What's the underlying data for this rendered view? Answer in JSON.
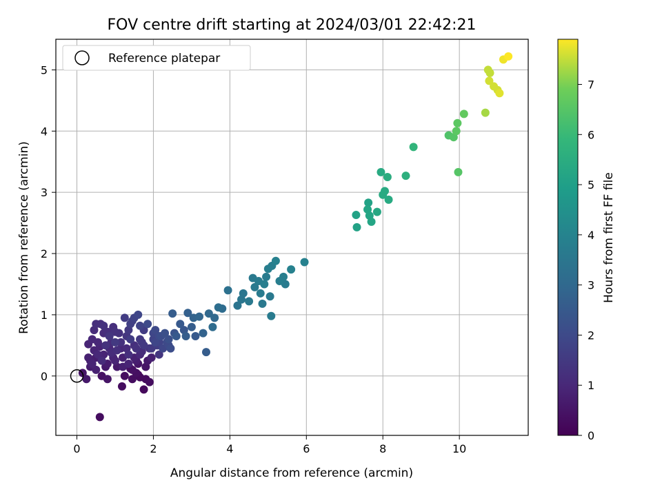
{
  "chart_data": {
    "type": "scatter",
    "title": "FOV centre drift starting at 2024/03/01 22:42:21",
    "xlabel": "Angular distance from reference (arcmin)",
    "ylabel": "Rotation from reference (arcmin)",
    "xlim": [
      -0.55,
      11.8
    ],
    "ylim": [
      -0.97,
      5.5
    ],
    "xticks": [
      0,
      2,
      4,
      6,
      8,
      10
    ],
    "yticks": [
      0,
      1,
      2,
      3,
      4,
      5
    ],
    "grid": true,
    "legend": {
      "placement": "top-left",
      "entries": [
        "Reference platepar"
      ]
    },
    "reference_point": {
      "x": 0,
      "y": 0
    },
    "colorbar": {
      "label": "Hours from first FF file",
      "colormap": "viridis",
      "range": [
        0,
        7.9
      ],
      "ticks": [
        0,
        1,
        2,
        3,
        4,
        5,
        6,
        7
      ]
    },
    "points": [
      [
        0.15,
        0.05,
        0.5
      ],
      [
        0.25,
        -0.05,
        0.6
      ],
      [
        0.3,
        0.52,
        0.9
      ],
      [
        0.35,
        0.25,
        0.8
      ],
      [
        0.35,
        0.15,
        0.7
      ],
      [
        0.4,
        0.6,
        1.0
      ],
      [
        0.45,
        0.75,
        1.1
      ],
      [
        0.45,
        0.42,
        0.9
      ],
      [
        0.5,
        0.3,
        0.7
      ],
      [
        0.5,
        0.1,
        0.8
      ],
      [
        0.55,
        0.55,
        1.0
      ],
      [
        0.6,
        -0.67,
        0.3
      ],
      [
        0.62,
        0.85,
        1.2
      ],
      [
        0.65,
        0.0,
        0.4
      ],
      [
        0.7,
        0.7,
        1.1
      ],
      [
        0.7,
        0.35,
        0.9
      ],
      [
        0.75,
        0.5,
        1.3
      ],
      [
        0.8,
        0.2,
        0.7
      ],
      [
        0.8,
        -0.05,
        0.5
      ],
      [
        0.85,
        0.65,
        1.4
      ],
      [
        0.9,
        0.38,
        1.1
      ],
      [
        0.95,
        0.8,
        1.2
      ],
      [
        1.0,
        0.25,
        0.9
      ],
      [
        1.0,
        0.55,
        1.5
      ],
      [
        1.05,
        0.15,
        0.6
      ],
      [
        1.1,
        0.7,
        1.3
      ],
      [
        1.15,
        0.45,
        1.0
      ],
      [
        1.18,
        -0.17,
        0.3
      ],
      [
        1.2,
        0.3,
        0.8
      ],
      [
        1.25,
        0.95,
        1.6
      ],
      [
        1.3,
        0.65,
        1.4
      ],
      [
        1.35,
        0.2,
        0.9
      ],
      [
        1.4,
        0.85,
        1.7
      ],
      [
        1.45,
        0.1,
        0.4
      ],
      [
        1.45,
        -0.05,
        0.3
      ],
      [
        1.5,
        0.5,
        1.2
      ],
      [
        1.5,
        0.95,
        1.8
      ],
      [
        1.55,
        0.25,
        0.7
      ],
      [
        1.6,
        0.02,
        0.2
      ],
      [
        1.6,
        1.0,
        1.9
      ],
      [
        1.65,
        0.6,
        1.5
      ],
      [
        1.7,
        0.4,
        1.1
      ],
      [
        1.75,
        -0.22,
        0.2
      ],
      [
        1.75,
        0.75,
        1.6
      ],
      [
        1.8,
        0.15,
        0.5
      ],
      [
        1.8,
        -0.05,
        0.25
      ],
      [
        1.85,
        0.85,
        2.0
      ],
      [
        1.9,
        0.45,
        1.3
      ],
      [
        1.9,
        -0.1,
        0.3
      ],
      [
        1.95,
        0.3,
        0.8
      ],
      [
        2.0,
        0.6,
        1.8
      ],
      [
        2.05,
        0.75,
        2.0
      ],
      [
        2.1,
        0.5,
        1.6
      ],
      [
        2.15,
        0.35,
        1.4
      ],
      [
        2.2,
        0.65,
        2.1
      ],
      [
        2.3,
        0.7,
        2.2
      ],
      [
        2.35,
        0.55,
        2.0
      ],
      [
        2.4,
        0.6,
        2.2
      ],
      [
        2.45,
        0.45,
        2.1
      ],
      [
        2.5,
        1.02,
        2.6
      ],
      [
        2.55,
        0.7,
        2.3
      ],
      [
        2.6,
        0.65,
        2.5
      ],
      [
        2.7,
        0.85,
        2.5
      ],
      [
        2.8,
        0.75,
        2.4
      ],
      [
        2.85,
        0.65,
        2.6
      ],
      [
        2.9,
        1.03,
        2.7
      ],
      [
        3.0,
        0.8,
        2.6
      ],
      [
        3.05,
        0.95,
        2.8
      ],
      [
        3.1,
        0.65,
        2.5
      ],
      [
        3.2,
        0.97,
        2.9
      ],
      [
        3.3,
        0.7,
        2.8
      ],
      [
        3.38,
        0.39,
        2.6
      ],
      [
        3.45,
        1.02,
        3.0
      ],
      [
        3.55,
        0.8,
        3.1
      ],
      [
        3.6,
        0.95,
        3.0
      ],
      [
        3.7,
        1.12,
        3.2
      ],
      [
        3.8,
        1.1,
        3.1
      ],
      [
        3.95,
        1.4,
        3.3
      ],
      [
        4.2,
        1.15,
        3.4
      ],
      [
        4.3,
        1.25,
        3.5
      ],
      [
        4.35,
        1.35,
        3.5
      ],
      [
        4.5,
        1.22,
        3.6
      ],
      [
        4.6,
        1.6,
        3.6
      ],
      [
        4.65,
        1.45,
        3.6
      ],
      [
        4.75,
        1.55,
        3.7
      ],
      [
        4.8,
        1.35,
        3.7
      ],
      [
        4.85,
        1.18,
        3.6
      ],
      [
        4.9,
        1.5,
        3.8
      ],
      [
        4.95,
        1.62,
        3.7
      ],
      [
        5.0,
        1.75,
        3.8
      ],
      [
        5.05,
        1.3,
        3.6
      ],
      [
        5.08,
        0.98,
        3.7
      ],
      [
        5.1,
        1.8,
        3.8
      ],
      [
        5.2,
        1.88,
        3.9
      ],
      [
        5.3,
        1.55,
        3.8
      ],
      [
        5.4,
        1.62,
        3.8
      ],
      [
        5.45,
        1.5,
        3.7
      ],
      [
        5.6,
        1.74,
        3.9
      ],
      [
        5.95,
        1.86,
        3.9
      ],
      [
        7.3,
        2.63,
        5.1
      ],
      [
        7.32,
        2.43,
        5.1
      ],
      [
        7.6,
        2.72,
        5.2
      ],
      [
        7.62,
        2.83,
        5.1
      ],
      [
        7.65,
        2.62,
        5.2
      ],
      [
        7.7,
        2.52,
        5.2
      ],
      [
        7.85,
        2.68,
        5.3
      ],
      [
        7.95,
        3.33,
        5.4
      ],
      [
        8.0,
        2.96,
        5.4
      ],
      [
        8.05,
        3.02,
        5.4
      ],
      [
        8.12,
        3.25,
        5.5
      ],
      [
        8.15,
        2.88,
        5.4
      ],
      [
        8.6,
        3.27,
        5.6
      ],
      [
        8.8,
        3.74,
        5.8
      ],
      [
        9.72,
        3.93,
        6.4
      ],
      [
        9.85,
        3.9,
        6.5
      ],
      [
        9.92,
        4.0,
        6.6
      ],
      [
        9.95,
        4.13,
        6.6
      ],
      [
        9.97,
        3.33,
        6.5
      ],
      [
        10.12,
        4.28,
        6.7
      ],
      [
        10.68,
        4.3,
        7.3
      ],
      [
        10.75,
        5.0,
        7.5
      ],
      [
        10.78,
        4.82,
        7.6
      ],
      [
        10.8,
        4.95,
        7.5
      ],
      [
        10.9,
        4.73,
        7.6
      ],
      [
        11.0,
        4.67,
        7.6
      ],
      [
        11.05,
        4.62,
        7.7
      ],
      [
        11.15,
        5.17,
        7.8
      ],
      [
        11.28,
        5.22,
        7.9
      ],
      [
        0.3,
        0.3,
        0.8
      ],
      [
        0.4,
        0.2,
        0.9
      ],
      [
        0.55,
        0.35,
        1.0
      ],
      [
        0.6,
        0.48,
        0.9
      ],
      [
        0.65,
        0.25,
        1.1
      ],
      [
        0.75,
        0.15,
        0.6
      ],
      [
        0.85,
        0.45,
        1.0
      ],
      [
        0.9,
        0.55,
        1.1
      ],
      [
        0.95,
        0.3,
        0.9
      ],
      [
        1.05,
        0.42,
        1.2
      ],
      [
        1.15,
        0.55,
        1.3
      ],
      [
        1.2,
        0.15,
        0.8
      ],
      [
        1.3,
        0.45,
        1.1
      ],
      [
        1.35,
        0.35,
        1.2
      ],
      [
        1.4,
        0.6,
        1.6
      ],
      [
        1.5,
        0.3,
        0.8
      ],
      [
        1.55,
        0.45,
        1.3
      ],
      [
        1.6,
        0.2,
        0.5
      ],
      [
        1.65,
        0.35,
        1.0
      ],
      [
        1.7,
        0.55,
        1.4
      ],
      [
        1.75,
        0.5,
        1.5
      ],
      [
        1.85,
        0.25,
        0.6
      ],
      [
        1.95,
        0.45,
        1.5
      ],
      [
        2.05,
        0.55,
        1.9
      ],
      [
        2.15,
        0.55,
        1.8
      ],
      [
        2.25,
        0.45,
        1.9
      ],
      [
        2.4,
        0.5,
        2.0
      ],
      [
        1.25,
        0.0,
        0.3
      ],
      [
        1.4,
        0.12,
        0.4
      ],
      [
        1.55,
        0.05,
        0.35
      ],
      [
        1.65,
        -0.02,
        0.25
      ],
      [
        0.5,
        0.85,
        1.2
      ],
      [
        0.7,
        0.82,
        1.3
      ],
      [
        0.8,
        0.72,
        1.2
      ],
      [
        1.0,
        0.72,
        1.3
      ],
      [
        1.35,
        0.75,
        1.5
      ],
      [
        1.45,
        0.9,
        1.7
      ],
      [
        1.65,
        0.82,
        1.8
      ],
      [
        2.0,
        0.7,
        1.9
      ],
      [
        2.15,
        0.65,
        2.0
      ]
    ]
  }
}
